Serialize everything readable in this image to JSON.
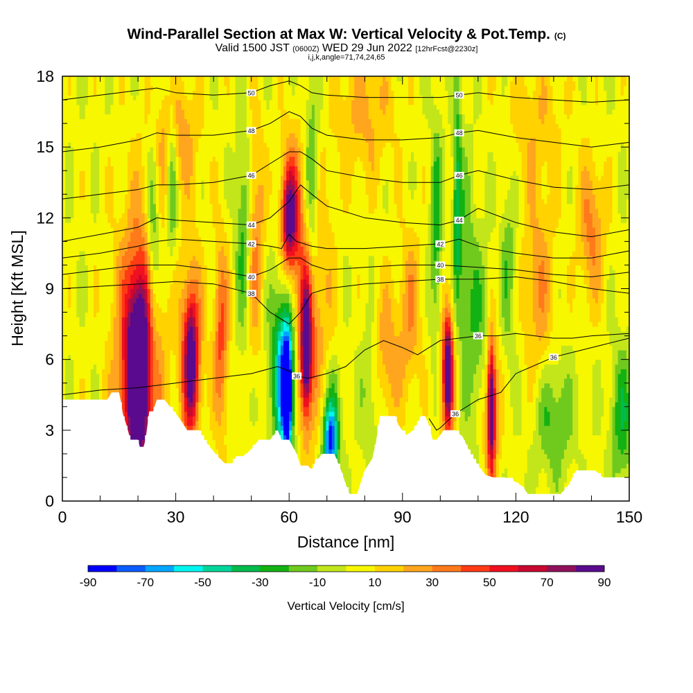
{
  "title": {
    "main": "Wind-Parallel Section at Max W: Vertical Velocity & Pot.Temp.",
    "main_tag": "(C)",
    "valid_prefix": "Valid 1500 JST",
    "valid_utc": "(0600Z)",
    "valid_date": "WED 29 Jun 2022",
    "forecast": "[12hrFcst@2230z]",
    "indices": "i,j,k,angle=71,74,24,65"
  },
  "chart_data": {
    "type": "heatmap",
    "xlabel": "Distance [nm]",
    "ylabel": "Height [Kft MSL]",
    "xlim": [
      0,
      150
    ],
    "ylim": [
      0,
      18
    ],
    "x_ticks": [
      "0",
      "30",
      "60",
      "90",
      "120",
      "150"
    ],
    "y_ticks": [
      "0",
      "3",
      "6",
      "9",
      "12",
      "15",
      "18"
    ],
    "colorbar": {
      "label": "Vertical Velocity [cm/s]",
      "tick_labels": [
        "-90",
        "-70",
        "-50",
        "-30",
        "-10",
        "10",
        "30",
        "50",
        "70",
        "90"
      ],
      "bounds": [
        -90,
        -80,
        -70,
        -60,
        -50,
        -40,
        -30,
        -20,
        -10,
        0,
        10,
        20,
        30,
        40,
        50,
        60,
        70,
        80,
        90
      ],
      "colors": [
        "#0000ff",
        "#0b5cff",
        "#00a6ff",
        "#00f5f0",
        "#00d69a",
        "#00bb4d",
        "#13b213",
        "#70ca1e",
        "#c3e61a",
        "#f7f700",
        "#ffd200",
        "#ffa61e",
        "#ff7a1a",
        "#ff3a14",
        "#f01020",
        "#c80830",
        "#90105a",
        "#5a0a8c"
      ]
    },
    "terrain_top_kft": [
      [
        0,
        4.3
      ],
      [
        12,
        4.3
      ],
      [
        13,
        4.6
      ],
      [
        15,
        4.6
      ],
      [
        15.5,
        4.2
      ],
      [
        16,
        3.7
      ],
      [
        17,
        3.2
      ],
      [
        18,
        2.6
      ],
      [
        20,
        2.6
      ],
      [
        20.5,
        2.3
      ],
      [
        21.5,
        2.3
      ],
      [
        22,
        2.6
      ],
      [
        23,
        3.8
      ],
      [
        24,
        3.8
      ],
      [
        25,
        4.3
      ],
      [
        27,
        4.3
      ],
      [
        29,
        3.9
      ],
      [
        31,
        3.5
      ],
      [
        33,
        3.0
      ],
      [
        36,
        3.0
      ],
      [
        38,
        2.5
      ],
      [
        41,
        1.9
      ],
      [
        43,
        1.6
      ],
      [
        45,
        1.6
      ],
      [
        46,
        1.9
      ],
      [
        48,
        1.9
      ],
      [
        50,
        2.2
      ],
      [
        52,
        2.6
      ],
      [
        55,
        2.6
      ],
      [
        57,
        3.0
      ],
      [
        58,
        2.6
      ],
      [
        60,
        2.6
      ],
      [
        62,
        2.0
      ],
      [
        63,
        1.5
      ],
      [
        65,
        1.5
      ],
      [
        66,
        1.3
      ],
      [
        67,
        1.7
      ],
      [
        69,
        2.0
      ],
      [
        72,
        2.0
      ],
      [
        74,
        1.2
      ],
      [
        75,
        0.7
      ],
      [
        76,
        0.3
      ],
      [
        78,
        0.3
      ],
      [
        79,
        0.8
      ],
      [
        80,
        1.3
      ],
      [
        82,
        1.8
      ],
      [
        83,
        2.5
      ],
      [
        84,
        3.6
      ],
      [
        88,
        3.6
      ],
      [
        89,
        3.2
      ],
      [
        91,
        2.8
      ],
      [
        93,
        3.0
      ],
      [
        95,
        3.6
      ],
      [
        96,
        3.6
      ],
      [
        97,
        3.2
      ],
      [
        98,
        2.6
      ],
      [
        99,
        2.6
      ],
      [
        101,
        3.0
      ],
      [
        104,
        3.0
      ],
      [
        106,
        2.7
      ],
      [
        108,
        2.0
      ],
      [
        110,
        1.5
      ],
      [
        112,
        1.1
      ],
      [
        114,
        1.0
      ],
      [
        117,
        1.0
      ],
      [
        119,
        0.9
      ],
      [
        122,
        0.6
      ],
      [
        123,
        0.3
      ],
      [
        132,
        0.3
      ],
      [
        134,
        0.7
      ],
      [
        136,
        1.3
      ],
      [
        141,
        1.3
      ],
      [
        143,
        1.0
      ],
      [
        150,
        1.0
      ]
    ],
    "updraft_cores": [
      [
        20,
        5.5,
        2.5,
        3.2,
        70
      ],
      [
        20,
        5.5,
        4.5,
        5.0,
        50
      ],
      [
        20,
        5.5,
        6.5,
        7.0,
        30
      ],
      [
        34,
        6.0,
        1.7,
        2.5,
        60
      ],
      [
        34,
        6.0,
        3.2,
        4.5,
        40
      ],
      [
        42,
        7.0,
        2.0,
        4.0,
        40
      ],
      [
        51,
        11.0,
        2.5,
        5.0,
        30
      ],
      [
        60,
        12.0,
        1.8,
        2.0,
        60
      ],
      [
        61,
        12.0,
        3.5,
        3.5,
        40
      ],
      [
        64.5,
        6.5,
        1.2,
        2.5,
        70
      ],
      [
        64.5,
        6.5,
        2.8,
        4.0,
        45
      ],
      [
        68,
        9.0,
        4.0,
        5.0,
        20
      ],
      [
        85,
        6.0,
        4.0,
        3.0,
        30
      ],
      [
        92,
        8.0,
        3.0,
        3.5,
        25
      ],
      [
        102,
        5.5,
        1.0,
        2.0,
        70
      ],
      [
        102,
        5.5,
        2.5,
        3.5,
        40
      ],
      [
        113.5,
        4.0,
        0.9,
        2.5,
        70
      ],
      [
        113.5,
        4.0,
        2.2,
        3.5,
        40
      ],
      [
        126,
        9.0,
        4.0,
        4.0,
        25
      ],
      [
        140,
        11.5,
        3.5,
        3.0,
        30
      ],
      [
        30,
        15.5,
        6.0,
        2.5,
        25
      ],
      [
        80,
        16.5,
        8.0,
        3.0,
        20
      ],
      [
        125,
        16.0,
        8.0,
        3.0,
        15
      ]
    ],
    "downdraft_cores": [
      [
        59.5,
        4.5,
        1.1,
        2.0,
        -90
      ],
      [
        59,
        5.0,
        2.2,
        3.0,
        -60
      ],
      [
        58,
        6.0,
        4.0,
        4.5,
        -30
      ],
      [
        71,
        2.5,
        1.5,
        1.3,
        -60
      ],
      [
        71,
        3.0,
        2.6,
        2.5,
        -35
      ],
      [
        24,
        11.0,
        1.6,
        4.5,
        -30
      ],
      [
        29,
        14.0,
        1.4,
        3.5,
        -30
      ],
      [
        48,
        11.5,
        2.0,
        4.5,
        -30
      ],
      [
        66,
        13.0,
        2.0,
        5.0,
        -30
      ],
      [
        82,
        5.0,
        3.0,
        3.0,
        -25
      ],
      [
        99,
        11.0,
        1.6,
        5.0,
        -30
      ],
      [
        104.5,
        12.5,
        1.2,
        5.5,
        -35
      ],
      [
        107,
        9.0,
        2.5,
        5.5,
        -20
      ],
      [
        111,
        7.0,
        3.0,
        4.0,
        -20
      ],
      [
        118,
        10.0,
        2.0,
        4.0,
        -20
      ],
      [
        130,
        3.5,
        5.0,
        2.5,
        -25
      ],
      [
        148,
        3.5,
        3.0,
        3.0,
        -30
      ]
    ],
    "isentropes": [
      {
        "label": "36",
        "x": [
          97,
          99,
          100,
          104,
          110,
          116,
          120,
          130,
          140,
          150
        ],
        "y": [
          3.5,
          3.0,
          3.1,
          3.7,
          4.3,
          4.6,
          5.4,
          6.1,
          6.5,
          6.9
        ]
      },
      {
        "label": "36",
        "x": [
          0,
          10,
          20,
          30,
          40,
          50,
          57,
          60,
          62,
          65,
          70,
          75,
          80,
          85,
          90,
          94,
          97,
          100,
          105,
          110,
          115,
          120,
          125,
          130,
          135,
          140,
          150
        ],
        "y": [
          4.5,
          4.7,
          4.8,
          5.0,
          5.2,
          5.4,
          5.7,
          5.5,
          5.3,
          5.2,
          5.4,
          5.7,
          6.4,
          6.8,
          6.5,
          6.2,
          6.5,
          6.8,
          6.9,
          7.0,
          7.0,
          7.1,
          7.0,
          6.9,
          6.9,
          7.0,
          7.1
        ]
      },
      {
        "label": "38",
        "x": [
          0,
          10,
          20,
          30,
          40,
          50,
          55,
          60,
          63,
          66,
          70,
          80,
          90,
          100,
          110,
          120,
          130,
          140,
          150
        ],
        "y": [
          9.0,
          9.1,
          9.2,
          9.3,
          9.2,
          8.8,
          8.0,
          7.5,
          8.0,
          8.8,
          9.0,
          9.2,
          9.3,
          9.4,
          9.4,
          9.5,
          9.3,
          9.0,
          8.8
        ]
      },
      {
        "label": "40",
        "x": [
          0,
          10,
          20,
          30,
          40,
          50,
          55,
          60,
          63,
          66,
          70,
          80,
          90,
          100,
          110,
          120,
          130,
          140,
          150
        ],
        "y": [
          9.6,
          9.8,
          10.0,
          10.0,
          9.8,
          9.5,
          9.8,
          10.3,
          10.3,
          10.0,
          9.8,
          9.9,
          10.0,
          10.0,
          9.9,
          9.8,
          9.6,
          9.5,
          9.7
        ]
      },
      {
        "label": "42",
        "x": [
          0,
          10,
          20,
          25,
          30,
          40,
          50,
          55,
          58,
          60,
          62,
          66,
          70,
          80,
          90,
          100,
          105,
          110,
          120,
          130,
          140,
          150
        ],
        "y": [
          10.3,
          10.5,
          10.8,
          11.0,
          11.1,
          11.0,
          10.9,
          10.8,
          10.7,
          11.3,
          11.0,
          10.8,
          10.7,
          10.7,
          10.8,
          10.9,
          11.1,
          10.8,
          10.5,
          10.3,
          10.3,
          10.6
        ]
      },
      {
        "label": "44",
        "x": [
          0,
          10,
          20,
          25,
          30,
          40,
          50,
          55,
          60,
          63,
          66,
          70,
          80,
          90,
          100,
          105,
          110,
          120,
          130,
          140,
          150
        ],
        "y": [
          11.0,
          11.3,
          11.6,
          12.0,
          11.9,
          11.8,
          11.7,
          12.0,
          12.7,
          13.4,
          13.0,
          12.5,
          12.0,
          11.8,
          11.7,
          11.9,
          12.4,
          11.8,
          11.4,
          11.2,
          11.5
        ]
      },
      {
        "label": "46",
        "x": [
          0,
          10,
          20,
          25,
          30,
          40,
          50,
          55,
          60,
          63,
          66,
          70,
          80,
          90,
          100,
          105,
          110,
          120,
          130,
          140,
          150
        ],
        "y": [
          12.8,
          13.0,
          13.2,
          13.4,
          13.4,
          13.5,
          13.8,
          14.3,
          14.8,
          14.8,
          14.5,
          14.0,
          13.7,
          13.5,
          13.5,
          13.8,
          14.0,
          13.6,
          13.3,
          13.2,
          13.4
        ]
      },
      {
        "label": "48",
        "x": [
          0,
          10,
          20,
          25,
          30,
          40,
          50,
          55,
          60,
          63,
          66,
          70,
          80,
          90,
          100,
          105,
          110,
          120,
          130,
          140,
          150
        ],
        "y": [
          14.8,
          15.0,
          15.3,
          15.6,
          15.5,
          15.5,
          15.7,
          16.0,
          16.5,
          16.3,
          15.8,
          15.5,
          15.3,
          15.3,
          15.4,
          15.6,
          15.7,
          15.4,
          15.2,
          15.0,
          15.2
        ]
      },
      {
        "label": "50",
        "x": [
          0,
          10,
          20,
          25,
          30,
          40,
          50,
          55,
          60,
          63,
          66,
          70,
          80,
          90,
          100,
          105,
          110,
          120,
          130,
          140,
          150
        ],
        "y": [
          17.0,
          17.2,
          17.4,
          17.5,
          17.3,
          17.2,
          17.3,
          17.6,
          17.8,
          17.6,
          17.3,
          17.2,
          17.1,
          17.1,
          17.1,
          17.2,
          17.3,
          17.1,
          17.0,
          16.9,
          17.0
        ]
      }
    ]
  }
}
